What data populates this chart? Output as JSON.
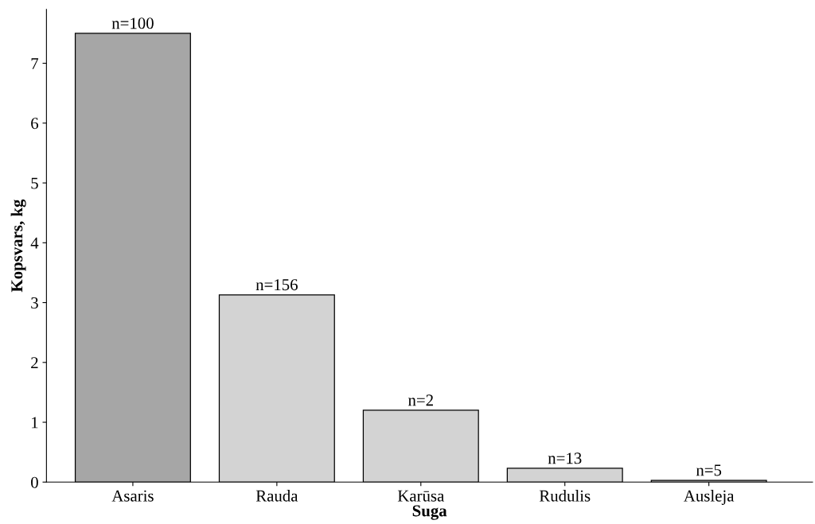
{
  "chart_data": {
    "type": "bar",
    "xlabel": "Suga",
    "ylabel": "Kopsvars, kg",
    "categories": [
      "Asaris",
      "Rauda",
      "Karūsa",
      "Rudulis",
      "Ausleja"
    ],
    "values": [
      7.5,
      3.13,
      1.2,
      0.23,
      0.03
    ],
    "annotations": [
      {
        "text": "n=100",
        "x": "Asaris",
        "y": 7.5
      },
      {
        "text": "n=156",
        "x": "Rauda",
        "y": 3.13
      },
      {
        "text": "n=2",
        "x": "Karūsa",
        "y": 1.2
      },
      {
        "text": "n=13",
        "x": "Rudulis",
        "y": 0.23
      },
      {
        "text": "n=5",
        "x": "Ausleja",
        "y": 0.03
      }
    ],
    "colors": [
      "#a6a6a6",
      "#d3d3d3",
      "#d3d3d3",
      "#d3d3d3",
      "#d3d3d3"
    ],
    "ylim": [
      0,
      7.9
    ],
    "yticks": [
      0,
      1,
      2,
      3,
      4,
      5,
      6,
      7
    ],
    "grid": false,
    "legend": false
  }
}
